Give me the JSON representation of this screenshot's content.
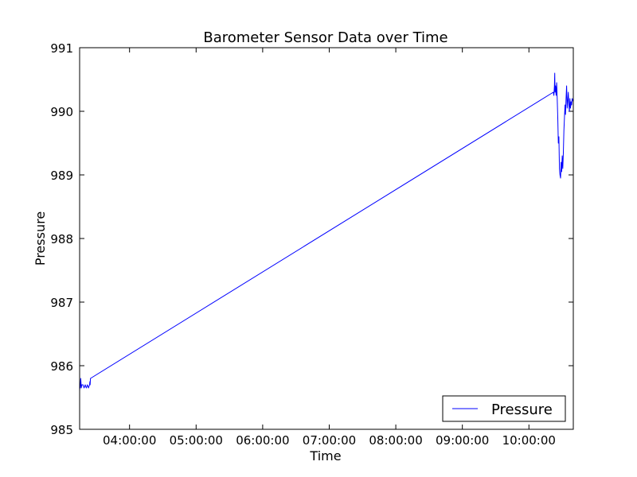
{
  "chart_data": {
    "type": "line",
    "title": "Barometer Sensor Data over Time",
    "xlabel": "Time",
    "ylabel": "Pressure",
    "xlim": [
      "03:15:00",
      "10:40:00"
    ],
    "ylim": [
      985,
      991
    ],
    "x_ticks": [
      "04:00:00",
      "05:00:00",
      "06:00:00",
      "07:00:00",
      "08:00:00",
      "09:00:00",
      "10:00:00"
    ],
    "y_ticks": [
      "985",
      "986",
      "987",
      "988",
      "989",
      "990",
      "991"
    ],
    "grid": false,
    "legend_position": "lower-right",
    "series": [
      {
        "name": "Pressure",
        "color": "#0000ff",
        "x": [
          "03:15:00",
          "03:15:15",
          "03:15:30",
          "03:16:00",
          "03:16:30",
          "03:17:00",
          "03:18:00",
          "03:19:00",
          "03:20:00",
          "03:21:00",
          "03:22:00",
          "03:23:00",
          "03:24:00",
          "03:24:15",
          "03:24:30",
          "03:24:45",
          "10:22:00",
          "10:22:30",
          "10:23:00",
          "10:23:15",
          "10:23:30",
          "10:24:00",
          "10:24:30",
          "10:25:00",
          "10:25:30",
          "10:26:00",
          "10:26:30",
          "10:27:00",
          "10:27:30",
          "10:28:00",
          "10:28:30",
          "10:29:00",
          "10:29:30",
          "10:30:00",
          "10:30:30",
          "10:31:00",
          "10:31:30",
          "10:32:00",
          "10:32:30",
          "10:33:00",
          "10:33:30",
          "10:34:00",
          "10:34:30",
          "10:35:00",
          "10:35:30",
          "10:36:00",
          "10:36:30",
          "10:37:00",
          "10:37:30",
          "10:38:00",
          "10:38:30",
          "10:39:00",
          "10:40:00"
        ],
        "y": [
          985.6,
          985.7,
          985.65,
          985.8,
          985.65,
          985.7,
          985.7,
          985.65,
          985.7,
          985.65,
          985.7,
          985.65,
          985.7,
          985.75,
          985.7,
          985.8,
          990.3,
          990.25,
          990.4,
          990.6,
          990.3,
          990.4,
          990.25,
          990.45,
          990.2,
          989.9,
          989.5,
          989.6,
          989.1,
          989.0,
          988.95,
          989.2,
          989.05,
          989.3,
          989.1,
          989.35,
          989.7,
          989.9,
          990.1,
          989.95,
          990.2,
          990.4,
          990.05,
          990.15,
          990.3,
          990.1,
          990.0,
          990.2,
          990.05,
          990.15,
          990.1,
          990.2,
          990.15
        ]
      }
    ]
  }
}
